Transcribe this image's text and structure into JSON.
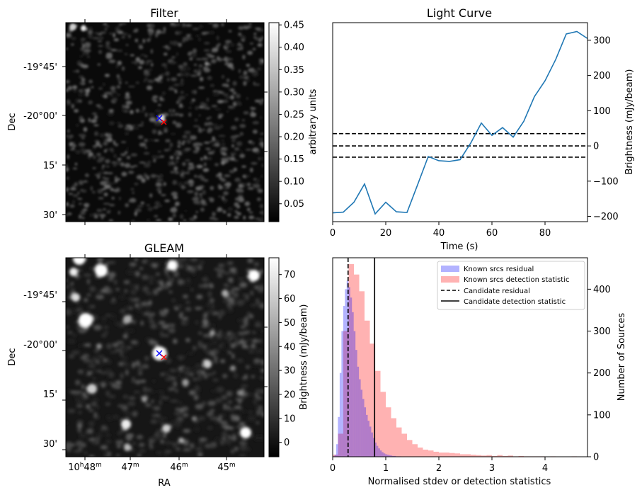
{
  "panels": {
    "filter": {
      "title": "Filter",
      "ylabel": "Dec",
      "yticks": [
        "-19°45'",
        "-20°00'",
        "15'",
        "30'"
      ],
      "colorbar_label": "arbitrary units",
      "colorbar_ticks": [
        "0.45",
        "0.40",
        "0.35",
        "0.30",
        "0.25",
        "0.20",
        "0.15",
        "0.10",
        "0.05"
      ],
      "colorbar_range": [
        0.01,
        0.455
      ],
      "colormap": "gray"
    },
    "gleam": {
      "title": "GLEAM",
      "ylabel": "Dec",
      "xlabel": "RA",
      "yticks": [
        "-19°45'",
        "-20°00'",
        "15'",
        "30'"
      ],
      "xticks": [
        {
          "main": "10",
          "sup1": "h",
          "mid": "48",
          "sup2": "m"
        },
        {
          "main": "47",
          "sup1": "",
          "mid": "",
          "sup2": "m"
        },
        {
          "main": "46",
          "sup1": "",
          "mid": "",
          "sup2": "m"
        },
        {
          "main": "45",
          "sup1": "",
          "mid": "",
          "sup2": "m"
        }
      ],
      "colorbar_label": "Brightness (mJy/beam)",
      "colorbar_ticks": [
        "70",
        "60",
        "50",
        "40",
        "30",
        "20",
        "10",
        "0"
      ],
      "colorbar_range": [
        -6,
        77
      ],
      "colormap": "gray"
    }
  },
  "chart_data": [
    {
      "type": "line",
      "title": "Light Curve",
      "xlabel": "Time (s)",
      "ylabel": "Brightness (mJy/beam)",
      "xlim": [
        0,
        96
      ],
      "ylim": [
        -215,
        350
      ],
      "xticks": [
        0,
        20,
        40,
        60,
        80
      ],
      "yticks": [
        -200,
        -100,
        0,
        100,
        200,
        300
      ],
      "series": [
        {
          "color": "#1f77b4",
          "x": [
            0,
            4,
            8,
            12,
            16,
            20,
            24,
            28,
            32,
            36,
            40,
            44,
            48,
            52,
            56,
            60,
            64,
            68,
            72,
            76,
            80,
            84,
            88,
            92,
            96
          ],
          "y": [
            -190,
            -188,
            -160,
            -108,
            -193,
            -160,
            -187,
            -189,
            -110,
            -30,
            -42,
            -44,
            -39,
            8,
            65,
            30,
            52,
            25,
            70,
            140,
            185,
            245,
            318,
            325,
            305
          ]
        }
      ],
      "hlines": [
        {
          "y": 35,
          "style": "dashed",
          "color": "#000000"
        },
        {
          "y": 0,
          "style": "dashed",
          "color": "#000000"
        },
        {
          "y": -32,
          "style": "dashed",
          "color": "#000000"
        }
      ]
    },
    {
      "type": "histogram",
      "xlabel": "Normalised stdev or detection statistics",
      "ylabel": "Number of Sources",
      "xlim": [
        0,
        4.8
      ],
      "ylim": [
        0,
        475
      ],
      "xticks": [
        0,
        1,
        2,
        3,
        4
      ],
      "yticks": [
        0,
        100,
        200,
        300,
        400
      ],
      "legend_position": "top-right",
      "series": [
        {
          "name": "Known srcs residual",
          "color": "#0000ff",
          "alpha": 0.3,
          "bin_width": 0.033,
          "bin_start": 0.0,
          "counts": [
            1,
            5,
            30,
            95,
            200,
            300,
            360,
            400,
            420,
            405,
            380,
            345,
            300,
            255,
            215,
            185,
            160,
            138,
            118,
            100,
            86,
            72,
            58,
            45,
            34,
            26,
            20,
            15,
            11,
            8,
            6,
            5,
            4,
            3,
            2,
            2,
            1,
            1,
            1
          ]
        },
        {
          "name": "Known srcs detection statistic",
          "color": "#ff0000",
          "alpha": 0.3,
          "bin_width": 0.1,
          "bin_start": 0.0,
          "counts": [
            5,
            55,
            300,
            460,
            435,
            395,
            325,
            270,
            205,
            155,
            118,
            92,
            70,
            55,
            40,
            30,
            22,
            17,
            15,
            12,
            10,
            10,
            9,
            8,
            6,
            6,
            5,
            4,
            3,
            4,
            2,
            4,
            2,
            3,
            1,
            2,
            1,
            1,
            1,
            1,
            0,
            1,
            0,
            0,
            0,
            1,
            0
          ]
        }
      ],
      "vlines": [
        {
          "name": "Candidate residual",
          "x": 0.29,
          "style": "dashed",
          "color": "#000000"
        },
        {
          "name": "Candidate detection statistic",
          "x": 0.79,
          "style": "solid",
          "color": "#000000"
        }
      ]
    }
  ]
}
